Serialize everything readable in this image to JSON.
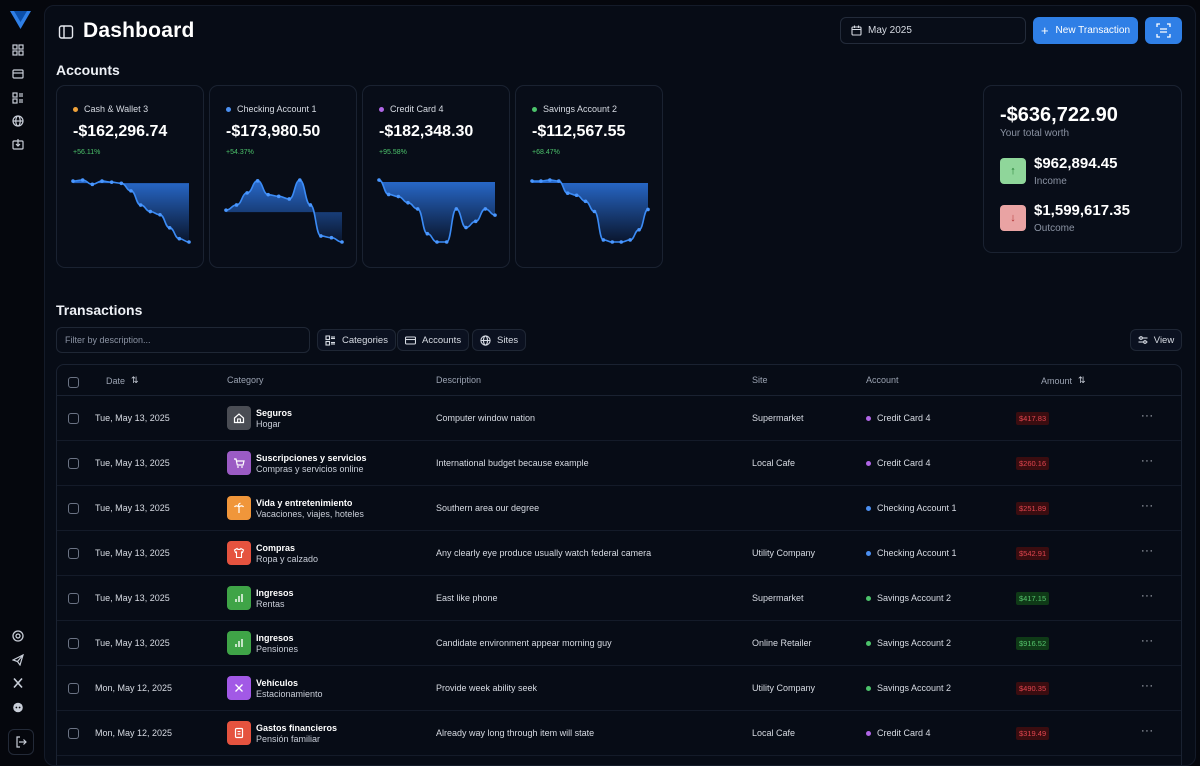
{
  "header": {
    "title": "Dashboard",
    "date_filter": "May 2025",
    "new_transaction_label": "New Transaction"
  },
  "accounts_section": {
    "title": "Accounts",
    "cards": [
      {
        "name": "Cash & Wallet 3",
        "balance": "-$162,296.74",
        "change": "+56.11%",
        "color": "#f0a23a",
        "series": [
          9,
          8,
          12,
          9,
          10,
          11,
          18,
          31,
          37,
          40,
          52,
          62,
          65
        ]
      },
      {
        "name": "Checking Account 1",
        "balance": "-$173,980.50",
        "change": "+54.37%",
        "color": "#4b8ff0",
        "series": [
          28,
          22,
          8,
          -6,
          10,
          12,
          15,
          -7,
          22,
          58,
          60,
          65
        ]
      },
      {
        "name": "Credit Card 4",
        "balance": "-$182,348.30",
        "change": "+95.58%",
        "color": "#b066e6",
        "series": [
          0,
          14,
          16,
          22,
          28,
          52,
          60,
          60,
          28,
          46,
          40,
          28,
          34
        ]
      },
      {
        "name": "Savings Account 2",
        "balance": "-$112,567.55",
        "change": "+68.47%",
        "color": "#4cc36b",
        "series": [
          0,
          0,
          -1,
          0,
          12,
          14,
          20,
          30,
          58,
          60,
          60,
          58,
          48,
          28
        ]
      }
    ]
  },
  "worth": {
    "total": "-$636,722.90",
    "total_label": "Your total worth",
    "income": "$962,894.45",
    "income_label": "Income",
    "outcome": "$1,599,617.35",
    "outcome_label": "Outcome"
  },
  "transactions": {
    "title": "Transactions",
    "filter_placeholder": "Filter by description...",
    "filters": [
      "Categories",
      "Accounts",
      "Sites"
    ],
    "view_label": "View",
    "columns": {
      "date": "Date",
      "category": "Category",
      "description": "Description",
      "site": "Site",
      "account": "Account",
      "amount": "Amount"
    },
    "rows": [
      {
        "date": "Tue, May 13, 2025",
        "cat": "Seguros",
        "sub": "Hogar",
        "icon": "home-icon",
        "icon_color": "#4a4d54",
        "desc": "Computer window nation",
        "site": "Supermarket",
        "account": "Credit Card 4",
        "acct_color": "#b066e6",
        "amount": "$417.83",
        "sign": "neg"
      },
      {
        "date": "Tue, May 13, 2025",
        "cat": "Suscripciones y servicios",
        "sub": "Compras y servicios online",
        "icon": "cart-icon",
        "icon_color": "#9b5bc4",
        "desc": "International budget because example",
        "site": "Local Cafe",
        "account": "Credit Card 4",
        "acct_color": "#b066e6",
        "amount": "$260.16",
        "sign": "neg"
      },
      {
        "date": "Tue, May 13, 2025",
        "cat": "Vida y entretenimiento",
        "sub": "Vacaciones, viajes, hoteles",
        "icon": "palm-tree-icon",
        "icon_color": "#f0963a",
        "desc": "Southern area our degree",
        "site": "",
        "account": "Checking Account 1",
        "acct_color": "#4b8ff0",
        "amount": "$251.89",
        "sign": "neg"
      },
      {
        "date": "Tue, May 13, 2025",
        "cat": "Compras",
        "sub": "Ropa y calzado",
        "icon": "shirt-icon",
        "icon_color": "#e5533f",
        "desc": "Any clearly eye produce usually watch federal camera",
        "site": "Utility Company",
        "account": "Checking Account 1",
        "acct_color": "#4b8ff0",
        "amount": "$542.91",
        "sign": "neg"
      },
      {
        "date": "Tue, May 13, 2025",
        "cat": "Ingresos",
        "sub": "Rentas",
        "icon": "bar-chart-icon",
        "icon_color": "#3fa447",
        "desc": "East like phone",
        "site": "Supermarket",
        "account": "Savings Account 2",
        "acct_color": "#4cc36b",
        "amount": "$417.15",
        "sign": "pos"
      },
      {
        "date": "Tue, May 13, 2025",
        "cat": "Ingresos",
        "sub": "Pensiones",
        "icon": "bar-chart-icon",
        "icon_color": "#3fa447",
        "desc": "Candidate environment appear morning guy",
        "site": "Online Retailer",
        "account": "Savings Account 2",
        "acct_color": "#4cc36b",
        "amount": "$916.52",
        "sign": "pos"
      },
      {
        "date": "Mon, May 12, 2025",
        "cat": "Vehículos",
        "sub": "Estacionamiento",
        "icon": "close-x-icon",
        "icon_color": "#a259e6",
        "desc": "Provide week ability seek",
        "site": "Utility Company",
        "account": "Savings Account 2",
        "acct_color": "#4cc36b",
        "amount": "$490.35",
        "sign": "neg"
      },
      {
        "date": "Mon, May 12, 2025",
        "cat": "Gastos financieros",
        "sub": "Pensión familiar",
        "icon": "bank-icon",
        "icon_color": "#e5533f",
        "desc": "Already way long through item will state",
        "site": "Local Cafe",
        "account": "Credit Card 4",
        "acct_color": "#b066e6",
        "amount": "$319.49",
        "sign": "neg"
      }
    ]
  }
}
